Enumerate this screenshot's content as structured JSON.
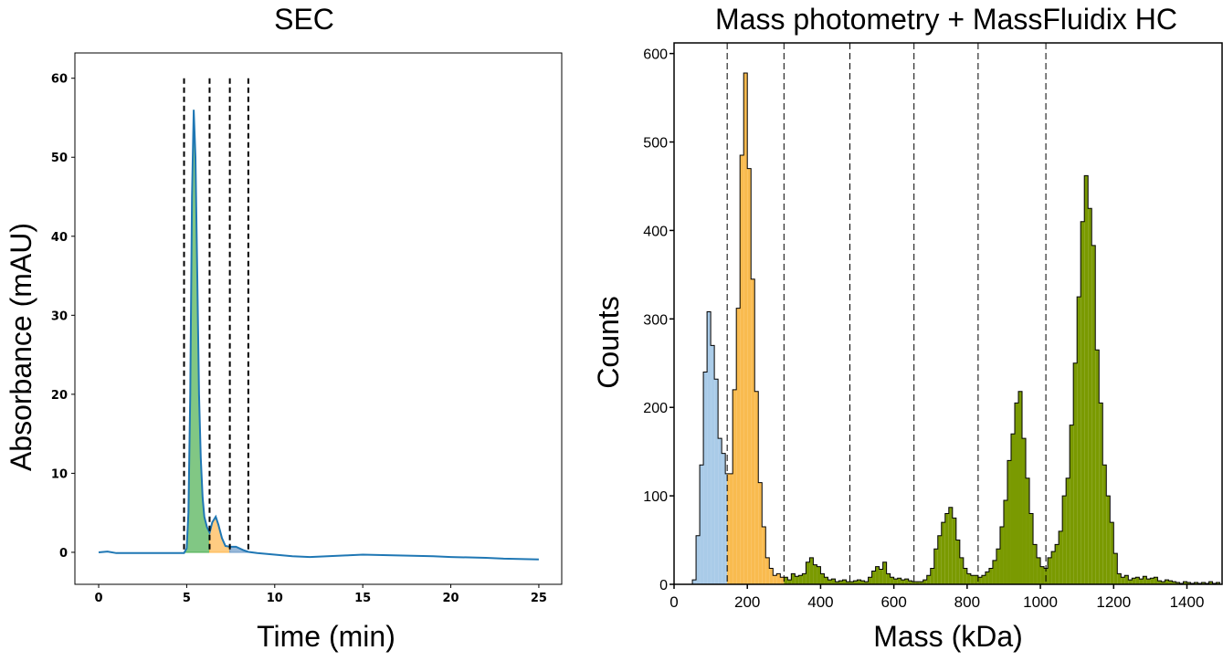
{
  "chart_data": [
    {
      "type": "line",
      "title": "SEC",
      "xlabel": "Time (min)",
      "ylabel": "Absorbance (mAU)",
      "xlim": [
        -1.35,
        26.3
      ],
      "ylim": [
        -4.05,
        63.2
      ],
      "xticks": [
        0,
        5,
        10,
        15,
        20,
        25
      ],
      "yticks": [
        0,
        10,
        20,
        30,
        40,
        50,
        60
      ],
      "grid": false,
      "line_color": "#1f77b4",
      "x": [
        0,
        0.5,
        1,
        2,
        3,
        4,
        4.85,
        5.0,
        5.1,
        5.2,
        5.3,
        5.4,
        5.5,
        5.6,
        5.7,
        5.8,
        5.9,
        6.0,
        6.15,
        6.3,
        6.45,
        6.65,
        6.8,
        7.0,
        7.2,
        7.45,
        7.8,
        8.2,
        8.5,
        9,
        10,
        11,
        12,
        13,
        14,
        15,
        17,
        19,
        20,
        22,
        23,
        25
      ],
      "y": [
        0,
        0.1,
        -0.1,
        -0.1,
        -0.1,
        -0.1,
        -0.1,
        0.5,
        5,
        20,
        45,
        56,
        50,
        35,
        20,
        12,
        7,
        4.5,
        3.2,
        2.5,
        3.8,
        4.5,
        3.5,
        1.8,
        0.8,
        0.7,
        0.7,
        0.3,
        0.05,
        -0.1,
        -0.3,
        -0.5,
        -0.6,
        -0.5,
        -0.4,
        -0.3,
        -0.4,
        -0.5,
        -0.6,
        -0.7,
        -0.8,
        -0.9
      ],
      "cut_lines": [
        4.85,
        6.3,
        7.45,
        8.5
      ],
      "cut_line_top": 60,
      "fractions": [
        {
          "from": 4.85,
          "to": 6.3,
          "color": "#4caf50"
        },
        {
          "from": 6.3,
          "to": 7.45,
          "color": "#ffb74d"
        },
        {
          "from": 7.45,
          "to": 8.5,
          "color": "#6e9bc9"
        }
      ]
    },
    {
      "type": "bar",
      "title": "Mass photometry + MassFluidix HC",
      "xlabel": "Mass (kDa)",
      "ylabel": "Counts",
      "xlim": [
        0,
        1496
      ],
      "ylim": [
        0,
        612
      ],
      "xticks": [
        0,
        200,
        400,
        600,
        800,
        1000,
        1200,
        1400
      ],
      "yticks": [
        0,
        100,
        200,
        300,
        400,
        500,
        600
      ],
      "grid": false,
      "bin_start": 50,
      "bin_width": 10,
      "counts": [
        5,
        55,
        135,
        240,
        308,
        270,
        232,
        165,
        148,
        125,
        125,
        220,
        312,
        485,
        578,
        470,
        345,
        218,
        115,
        65,
        30,
        18,
        10,
        12,
        8,
        8,
        5,
        12,
        9,
        10,
        12,
        25,
        30,
        22,
        20,
        12,
        8,
        5,
        6,
        3,
        4,
        5,
        3,
        3,
        4,
        5,
        4,
        3,
        8,
        15,
        20,
        17,
        25,
        12,
        8,
        6,
        7,
        5,
        6,
        4,
        3,
        3,
        3,
        5,
        10,
        18,
        40,
        55,
        70,
        80,
        87,
        75,
        50,
        30,
        18,
        12,
        10,
        10,
        8,
        10,
        14,
        18,
        27,
        40,
        65,
        95,
        140,
        170,
        205,
        218,
        165,
        120,
        80,
        45,
        30,
        20,
        18,
        30,
        37,
        45,
        60,
        100,
        120,
        180,
        250,
        325,
        410,
        462,
        425,
        383,
        265,
        205,
        135,
        100,
        70,
        35,
        12,
        8,
        10,
        5,
        7,
        8,
        6,
        9,
        6,
        7,
        8,
        4,
        3,
        5,
        4,
        3,
        2,
        1,
        3,
        2,
        1,
        2,
        1,
        2,
        1,
        3,
        1,
        2
      ],
      "cut_lines": [
        145,
        300,
        480,
        655,
        830,
        1015
      ],
      "region_colors": [
        {
          "from": 0,
          "to": 145,
          "color": "#a9cbe8"
        },
        {
          "from": 145,
          "to": 300,
          "color": "#f9bb4f"
        },
        {
          "from": 300,
          "to": 1500,
          "color": "#7a9a01"
        }
      ]
    }
  ]
}
